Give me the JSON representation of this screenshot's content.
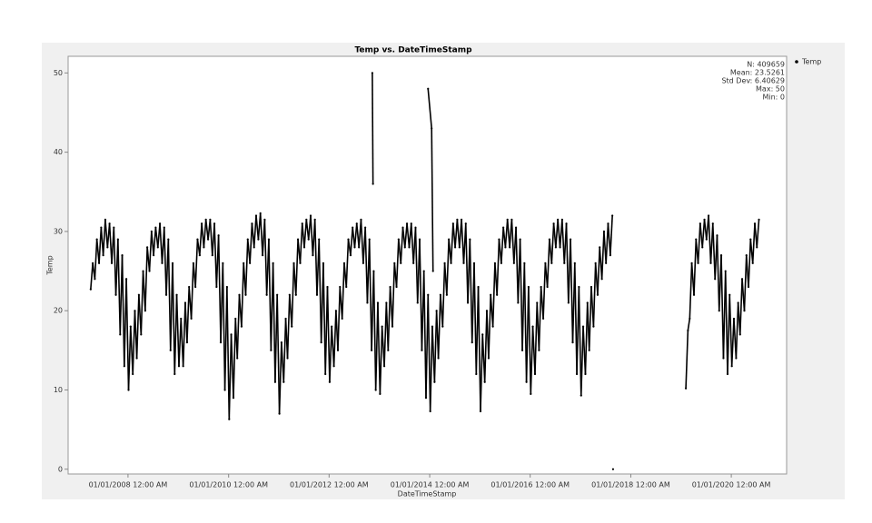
{
  "chart_data": {
    "type": "scatter",
    "title": "Temp vs. DateTimeStamp",
    "x_label": "DateTimeStamp",
    "y_label": "Temp",
    "legend": "right",
    "stats": [
      "N: 409659",
      "Mean: 23.5261",
      "Std Dev: 6.40629",
      "Max: 50",
      "Min: 0"
    ],
    "xlim": [
      "2006-10-23",
      "2021-02-06"
    ],
    "xticks": [
      {
        "value": "2008-01-01",
        "label": "01/01/2008 12:00 AM"
      },
      {
        "value": "2010-01-01",
        "label": "01/01/2010 12:00 AM"
      },
      {
        "value": "2012-01-01",
        "label": "01/01/2012 12:00 AM"
      },
      {
        "value": "2014-01-01",
        "label": "01/01/2014 12:00 AM"
      },
      {
        "value": "2016-01-01",
        "label": "01/01/2016 12:00 AM"
      },
      {
        "value": "2018-01-01",
        "label": "01/01/2018 12:00 AM"
      },
      {
        "value": "2020-01-01",
        "label": "01/01/2020 12:00 AM"
      }
    ],
    "ylim": [
      -0.6,
      52.1
    ],
    "yticks": [
      0,
      10,
      20,
      30,
      40,
      50
    ],
    "x": [
      "2007-04-05",
      "2007-04-20",
      "2007-05-05",
      "2007-05-20",
      "2007-06-05",
      "2007-06-20",
      "2007-07-05",
      "2007-07-20",
      "2007-08-05",
      "2007-08-20",
      "2007-09-05",
      "2007-09-20",
      "2007-10-05",
      "2007-10-20",
      "2007-11-05",
      "2007-11-20",
      "2007-12-05",
      "2007-12-20",
      "2008-01-05",
      "2008-01-20",
      "2008-02-05",
      "2008-02-20",
      "2008-03-05",
      "2008-03-20",
      "2008-04-05",
      "2008-04-20",
      "2008-05-05",
      "2008-05-20",
      "2008-06-05",
      "2008-06-20",
      "2008-07-05",
      "2008-07-20",
      "2008-08-05",
      "2008-08-20",
      "2008-09-05",
      "2008-09-20",
      "2008-10-05",
      "2008-10-20",
      "2008-11-05",
      "2008-11-20",
      "2008-12-05",
      "2008-12-20",
      "2009-01-05",
      "2009-01-20",
      "2009-02-05",
      "2009-02-20",
      "2009-03-05",
      "2009-03-20",
      "2009-04-05",
      "2009-04-20",
      "2009-05-05",
      "2009-05-20",
      "2009-06-05",
      "2009-06-20",
      "2009-07-05",
      "2009-07-20",
      "2009-08-05",
      "2009-08-20",
      "2009-09-05",
      "2009-09-20",
      "2009-10-05",
      "2009-10-20",
      "2009-11-05",
      "2009-11-20",
      "2009-12-05",
      "2009-12-20",
      "2010-01-05",
      "2010-01-20",
      "2010-02-05",
      "2010-02-20",
      "2010-03-05",
      "2010-03-20",
      "2010-04-05",
      "2010-04-20",
      "2010-05-05",
      "2010-05-20",
      "2010-06-05",
      "2010-06-20",
      "2010-07-05",
      "2010-07-20",
      "2010-08-05",
      "2010-08-20",
      "2010-09-05",
      "2010-09-20",
      "2010-10-05",
      "2010-10-20",
      "2010-11-05",
      "2010-11-20",
      "2010-12-05",
      "2010-12-20",
      "2011-01-05",
      "2011-01-20",
      "2011-02-05",
      "2011-02-20",
      "2011-03-05",
      "2011-03-20",
      "2011-04-05",
      "2011-04-20",
      "2011-05-05",
      "2011-05-20",
      "2011-06-05",
      "2011-06-20",
      "2011-07-05",
      "2011-07-20",
      "2011-08-05",
      "2011-08-20",
      "2011-09-05",
      "2011-09-20",
      "2011-10-05",
      "2011-10-20",
      "2011-11-05",
      "2011-11-20",
      "2011-12-05",
      "2011-12-20",
      "2012-01-05",
      "2012-01-20",
      "2012-02-05",
      "2012-02-20",
      "2012-03-05",
      "2012-03-20",
      "2012-04-05",
      "2012-04-20",
      "2012-05-05",
      "2012-05-20",
      "2012-06-05",
      "2012-06-20",
      "2012-07-05",
      "2012-07-20",
      "2012-08-05",
      "2012-08-20",
      "2012-09-05",
      "2012-09-20",
      "2012-10-05",
      "2012-10-20",
      "2012-11-05",
      "2012-11-20",
      "2012-12-05",
      "2012-12-20",
      "2013-01-05",
      "2013-01-20",
      "2013-02-05",
      "2013-02-20",
      "2013-03-05",
      "2013-03-20",
      "2013-04-05",
      "2013-04-20",
      "2013-05-05",
      "2013-05-20",
      "2013-06-05",
      "2013-06-20",
      "2013-07-05",
      "2013-07-20",
      "2013-08-05",
      "2013-08-20",
      "2013-09-05",
      "2013-09-20",
      "2013-10-05",
      "2013-10-20",
      "2013-11-05",
      "2013-11-20",
      "2013-12-05",
      "2013-12-20",
      "2014-01-05",
      "2014-01-20",
      "2014-02-05",
      "2014-02-20",
      "2014-03-05",
      "2014-03-20",
      "2014-04-05",
      "2014-04-20",
      "2014-05-05",
      "2014-05-20",
      "2014-06-05",
      "2014-06-20",
      "2014-07-05",
      "2014-07-20",
      "2014-08-05",
      "2014-08-20",
      "2014-09-05",
      "2014-09-20",
      "2014-10-05",
      "2014-10-20",
      "2014-11-05",
      "2014-11-20",
      "2014-12-05",
      "2014-12-20",
      "2015-01-05",
      "2015-01-20",
      "2015-02-05",
      "2015-02-20",
      "2015-03-05",
      "2015-03-20",
      "2015-04-05",
      "2015-04-20",
      "2015-05-05",
      "2015-05-20",
      "2015-06-05",
      "2015-06-20",
      "2015-07-05",
      "2015-07-20",
      "2015-08-05",
      "2015-08-20",
      "2015-09-05",
      "2015-09-20",
      "2015-10-05",
      "2015-10-20",
      "2015-11-05",
      "2015-11-20",
      "2015-12-05",
      "2015-12-20",
      "2016-01-05",
      "2016-01-20",
      "2016-02-05",
      "2016-02-20",
      "2016-03-05",
      "2016-03-20",
      "2016-04-05",
      "2016-04-20",
      "2016-05-05",
      "2016-05-20",
      "2016-06-05",
      "2016-06-20",
      "2016-07-05",
      "2016-07-20",
      "2016-08-05",
      "2016-08-20",
      "2016-09-05",
      "2016-09-20",
      "2016-10-05",
      "2016-10-20",
      "2016-11-05",
      "2016-11-20",
      "2016-12-05",
      "2016-12-20",
      "2017-01-05",
      "2017-01-20",
      "2017-02-05",
      "2017-02-20",
      "2017-03-05",
      "2017-03-20",
      "2017-04-05",
      "2017-04-20",
      "2017-05-05",
      "2017-05-20",
      "2017-06-05",
      "2017-06-20",
      "2017-07-05",
      "2017-07-20",
      "2017-08-05",
      "2017-08-20",
      "2019-02-05",
      "2019-02-20",
      "2019-03-05",
      "2019-03-20",
      "2019-04-05",
      "2019-04-20",
      "2019-05-05",
      "2019-05-20",
      "2019-06-05",
      "2019-06-20",
      "2019-07-05",
      "2019-07-20",
      "2019-08-05",
      "2019-08-20",
      "2019-09-05",
      "2019-09-20",
      "2019-10-05",
      "2019-10-20",
      "2019-11-05",
      "2019-11-20",
      "2019-12-05",
      "2019-12-20",
      "2020-01-05",
      "2020-01-20",
      "2020-02-05",
      "2020-02-20",
      "2020-03-05",
      "2020-03-20",
      "2020-04-05",
      "2020-04-20",
      "2020-05-05",
      "2020-05-20",
      "2020-06-05",
      "2020-06-20",
      "2020-07-05",
      "2020-07-20",
      "2012-11-10",
      "2012-11-15",
      "2013-12-20",
      "2014-01-15",
      "2014-01-25",
      "2017-08-25"
    ],
    "series": [
      {
        "name": "Temp",
        "color": "#000000",
        "values": [
          22.7,
          26,
          24,
          29,
          26,
          30.5,
          27,
          31.5,
          28,
          31,
          26,
          30.5,
          22,
          29,
          17,
          27,
          13,
          24,
          10,
          18,
          12,
          20,
          14,
          22,
          17,
          25,
          20,
          28,
          25,
          30,
          27,
          30.5,
          28,
          31,
          26,
          30.5,
          22,
          29,
          15,
          26,
          12,
          22,
          13,
          19,
          13,
          21,
          16,
          23,
          19,
          26,
          23,
          29,
          27,
          31,
          28,
          31.5,
          29,
          31.5,
          27,
          31,
          23,
          29.5,
          16,
          26,
          10,
          23,
          6.3,
          17,
          9,
          19,
          14,
          22,
          18,
          26,
          22,
          29,
          26,
          31,
          28,
          32,
          29,
          32.3,
          27,
          31.5,
          22,
          29,
          15,
          26,
          11,
          22,
          7,
          16,
          11,
          19,
          14,
          22,
          18,
          26,
          22,
          29,
          26,
          31,
          28,
          31.5,
          29,
          32,
          27,
          31.5,
          22,
          29,
          16,
          26,
          12,
          23,
          11,
          18,
          13,
          20,
          15,
          23,
          19,
          26,
          23,
          29,
          27,
          30.5,
          28,
          31,
          28,
          31.5,
          26,
          30.5,
          21,
          29,
          15,
          25,
          10,
          21,
          9.5,
          18,
          13,
          21,
          15,
          23,
          18,
          26,
          23,
          29,
          26,
          30.5,
          28,
          31,
          28,
          31,
          26,
          30.5,
          21,
          29,
          15,
          25,
          9,
          22,
          7.3,
          18,
          11,
          20,
          14,
          22,
          18,
          26,
          22,
          29,
          26,
          31,
          28,
          31.5,
          28,
          31.5,
          26,
          31,
          21,
          29,
          16,
          26,
          12,
          23,
          7.3,
          17,
          11,
          20,
          14,
          22,
          18,
          26,
          22,
          29,
          26,
          30.5,
          28,
          31.5,
          28,
          31.5,
          26,
          30.5,
          21,
          29,
          15,
          26,
          11,
          23,
          9.5,
          18,
          12,
          21,
          15,
          23,
          19,
          26,
          23,
          29,
          26,
          31,
          28,
          31.5,
          28,
          31.5,
          26,
          31,
          21,
          29,
          16,
          26,
          12,
          23,
          9.3,
          18,
          12,
          21,
          15,
          23,
          18,
          26,
          22,
          28,
          24,
          30,
          26,
          31,
          27,
          32,
          10.2,
          17.5,
          19,
          26,
          22,
          29,
          26,
          31,
          28,
          31.5,
          29,
          32,
          26,
          31,
          24,
          29.5,
          20,
          27,
          14,
          25,
          12,
          22,
          13,
          19,
          14,
          21,
          17,
          24,
          20,
          27,
          23,
          29,
          26,
          31,
          28,
          31.5,
          50,
          36,
          48,
          43,
          25,
          0
        ]
      }
    ]
  }
}
